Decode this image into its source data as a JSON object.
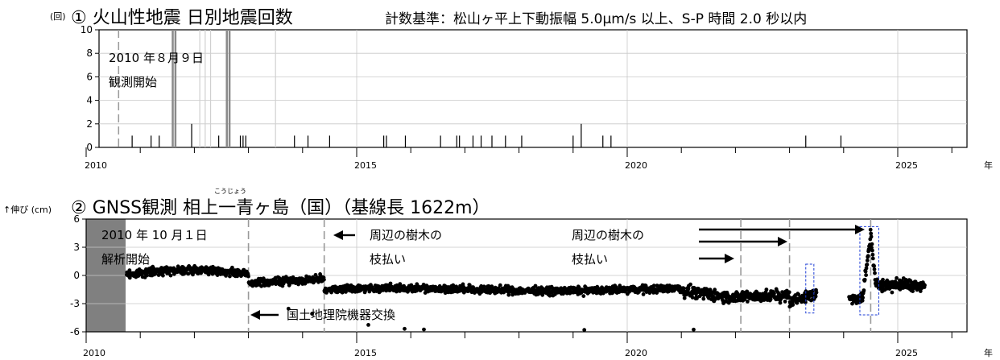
{
  "chart_data": [
    {
      "type": "bar",
      "title": "① 火山性地震 日別地震回数",
      "subtitle": "計数基準：松山ヶ平上下動振幅 5.0μm/s 以上、S-P 時間 2.0 秒以内",
      "ylabel": "(回)",
      "xunit": "年",
      "ylim": [
        0,
        10
      ],
      "xlim": [
        2010,
        2026
      ],
      "ytick_labels": [
        "0",
        "2",
        "4",
        "6",
        "8",
        "10"
      ],
      "xtick_labels": [
        "2010",
        "2015",
        "2020",
        "2025"
      ],
      "annotations": [
        {
          "text": [
            "2010 年８月９日",
            "観測開始"
          ]
        }
      ],
      "marker_lines": [
        2010.6,
        2012.1,
        2012.2,
        2012.3,
        2013.5
      ],
      "events": [
        {
          "t": 2010.85,
          "v": 1
        },
        {
          "t": 2011.2,
          "v": 1
        },
        {
          "t": 2011.35,
          "v": 1
        },
        {
          "t": 2011.6,
          "v": 10
        },
        {
          "t": 2011.65,
          "v": 10
        },
        {
          "t": 2011.95,
          "v": 2
        },
        {
          "t": 2012.45,
          "v": 1
        },
        {
          "t": 2012.6,
          "v": 10
        },
        {
          "t": 2012.65,
          "v": 10
        },
        {
          "t": 2012.85,
          "v": 1
        },
        {
          "t": 2012.9,
          "v": 1
        },
        {
          "t": 2012.95,
          "v": 1
        },
        {
          "t": 2013.85,
          "v": 1
        },
        {
          "t": 2014.1,
          "v": 1
        },
        {
          "t": 2014.5,
          "v": 1
        },
        {
          "t": 2015.5,
          "v": 1
        },
        {
          "t": 2015.55,
          "v": 1
        },
        {
          "t": 2015.9,
          "v": 1
        },
        {
          "t": 2016.55,
          "v": 1
        },
        {
          "t": 2016.85,
          "v": 1
        },
        {
          "t": 2016.9,
          "v": 1
        },
        {
          "t": 2017.15,
          "v": 1
        },
        {
          "t": 2017.3,
          "v": 1
        },
        {
          "t": 2017.5,
          "v": 1
        },
        {
          "t": 2017.75,
          "v": 1
        },
        {
          "t": 2018.05,
          "v": 1
        },
        {
          "t": 2019.0,
          "v": 1
        },
        {
          "t": 2019.15,
          "v": 2
        },
        {
          "t": 2019.55,
          "v": 1
        },
        {
          "t": 2019.7,
          "v": 1
        },
        {
          "t": 2023.3,
          "v": 1
        },
        {
          "t": 2023.95,
          "v": 1
        }
      ]
    },
    {
      "type": "scatter",
      "title": "② GNSS観測 相上一青ヶ島（国）（基線長 1622m）",
      "ruby": "こうじょう",
      "ylabel": "↑伸び (cm)",
      "xunit": "年",
      "ylim": [
        -6,
        6
      ],
      "xlim": [
        2010,
        2026
      ],
      "ytick_labels": [
        "-6",
        "-3",
        "0",
        "3",
        "6"
      ],
      "xtick_labels": [
        "2010",
        "2015",
        "2020",
        "2025"
      ],
      "no_data_before": 2010.75,
      "annotations": [
        {
          "text": [
            "2010 年 10 月１日",
            "解析開始"
          ]
        },
        {
          "text": "国土地理院機器交換"
        },
        {
          "text": [
            "周辺の樹木の",
            "枝払い"
          ]
        },
        {
          "text": [
            "周辺の樹木の",
            "枝払い"
          ]
        }
      ],
      "marker_lines": [
        2013.0,
        2014.4,
        2022.1,
        2023.0,
        2024.5
      ],
      "highlight_boxes": [
        {
          "x": [
            2023.3,
            2023.45
          ],
          "y": [
            -4,
            1.2
          ]
        },
        {
          "x": [
            2024.3,
            2024.65
          ],
          "y": [
            -4.2,
            5.2
          ]
        }
      ],
      "series_desc": "Daily baseline length change; near 0 cm 2010–2013, about -1 cm 2013–2014, about -1.5 cm 2014–2021, falling to about -2.5 cm by 2022, about -3 cm in 2023, gap then rapid rise to about +5 cm in mid-2024, about -1 cm thereafter."
    }
  ]
}
